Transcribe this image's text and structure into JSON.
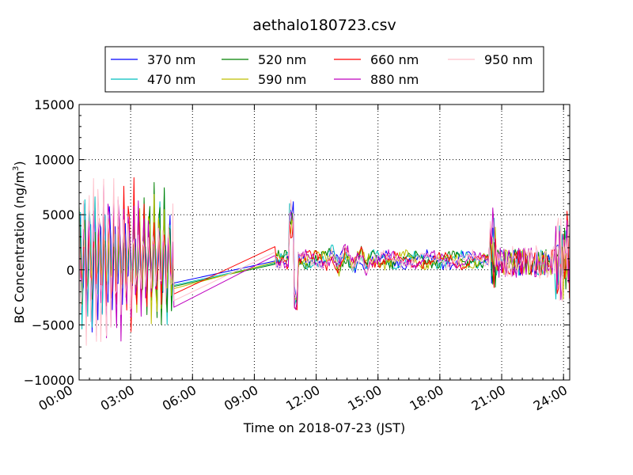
{
  "chart_data": {
    "type": "line",
    "title": "aethalo180723.csv",
    "xlabel": "Time on 2018-07-23 (JST)",
    "ylabel_main": "BC Concentration (ng/m",
    "ylabel_sup": "3",
    "ylabel_close": ")",
    "xlim_hours": [
      0.5,
      24.3
    ],
    "ylim": [
      -10000,
      15000
    ],
    "x_ticks": [
      {
        "hours": 0,
        "label": "00:00"
      },
      {
        "hours": 3,
        "label": "03:00"
      },
      {
        "hours": 6,
        "label": "06:00"
      },
      {
        "hours": 9,
        "label": "09:00"
      },
      {
        "hours": 12,
        "label": "12:00"
      },
      {
        "hours": 15,
        "label": "15:00"
      },
      {
        "hours": 18,
        "label": "18:00"
      },
      {
        "hours": 21,
        "label": "21:00"
      },
      {
        "hours": 24,
        "label": "24:00"
      }
    ],
    "y_ticks": [
      {
        "value": 15000,
        "label": "15000"
      },
      {
        "value": 10000,
        "label": "10000"
      },
      {
        "value": 5000,
        "label": "5000"
      },
      {
        "value": 0,
        "label": "0"
      },
      {
        "value": -5000,
        "label": "−5000"
      },
      {
        "value": -10000,
        "label": "−10000"
      }
    ],
    "grid": true,
    "legend_position": "top",
    "series": [
      {
        "name": "370 nm",
        "color": "#0000ff",
        "gap": [
          -1200,
          800
        ],
        "amp": 1.0,
        "seed": 1
      },
      {
        "name": "470 nm",
        "color": "#00bfbf",
        "gap": [
          -1400,
          600
        ],
        "amp": 1.0,
        "seed": 2
      },
      {
        "name": "520 nm",
        "color": "#008000",
        "gap": [
          -1500,
          500
        ],
        "amp": 0.95,
        "seed": 3
      },
      {
        "name": "590 nm",
        "color": "#bfbf00",
        "gap": [
          -1700,
          700
        ],
        "amp": 0.95,
        "seed": 4
      },
      {
        "name": "660 nm",
        "color": "#ff0000",
        "gap": [
          -2200,
          2100
        ],
        "amp": 1.0,
        "seed": 5
      },
      {
        "name": "880 nm",
        "color": "#bf00bf",
        "gap": [
          -3400,
          1300
        ],
        "amp": 1.15,
        "seed": 6
      },
      {
        "name": "950 nm",
        "color": "#ffc0cb",
        "gap": [
          -2800,
          1600
        ],
        "amp": 1.2,
        "seed": 7
      }
    ],
    "gap_hours": [
      5.1,
      10.0
    ]
  }
}
